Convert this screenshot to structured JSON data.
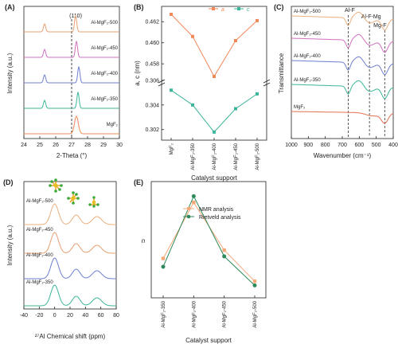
{
  "panels": {
    "A": {
      "letter": "(A)"
    },
    "B": {
      "letter": "(B)"
    },
    "C": {
      "letter": "(C)"
    },
    "D": {
      "letter": "(D)"
    },
    "E": {
      "letter": "(E)"
    }
  },
  "chart_data": [
    {
      "id": "A",
      "type": "line",
      "xlabel": "2-Theta (°)",
      "ylabel": "Intensity (a.u.)",
      "xlim": [
        24,
        30
      ],
      "xticks": [
        "24",
        "25",
        "26",
        "27",
        "28",
        "29",
        "30"
      ],
      "annotation": "(110)",
      "series": [
        {
          "name": "Al-MgF₂-500",
          "color": "#e8a070",
          "peaks": [
            25.3,
            27.25
          ]
        },
        {
          "name": "Al-MgF₂-450",
          "color": "#d070c0",
          "peaks": [
            25.3,
            27.3
          ]
        },
        {
          "name": "Al-MgF₂-400",
          "color": "#6f7fd0",
          "peaks": [
            25.3,
            27.45
          ]
        },
        {
          "name": "Al-MgF₂-350",
          "color": "#3cb59a",
          "peaks": [
            25.3,
            27.4
          ]
        },
        {
          "name": "MgF₂",
          "color": "#f28a55",
          "peaks": [
            27.3
          ]
        }
      ]
    },
    {
      "id": "B",
      "type": "line",
      "xlabel": "Catalyst support",
      "ylabel": "a, c (nm)",
      "categories": [
        "MgF₂",
        "Al-MgF₂-350",
        "Al-MgF₂-400",
        "Al-MgF₂-450",
        "Al-MgF₂-500"
      ],
      "upper": {
        "ylim": [
          0.4565,
          0.463
        ],
        "yticks": [
          "0.458",
          "0.460",
          "0.462"
        ],
        "tickvals": [
          0.458,
          0.46,
          0.462
        ]
      },
      "lower": {
        "ylim": [
          0.3014,
          0.3058
        ],
        "yticks": [
          "0.302",
          "0.304",
          "0.306"
        ],
        "tickvals": [
          0.302,
          0.304,
          0.306
        ]
      },
      "series": [
        {
          "name": "a",
          "color": "#f0885a",
          "values": [
            0.4627,
            0.4606,
            0.4568,
            0.4602,
            0.4621
          ]
        },
        {
          "name": "c",
          "color": "#3cb59a",
          "values": [
            0.3052,
            0.304,
            0.3018,
            0.3037,
            0.3049
          ]
        }
      ]
    },
    {
      "id": "C",
      "type": "line",
      "xlabel": "Wavenumber (cm⁻¹)",
      "ylabel": "Transmittance",
      "xlim": [
        1000,
        400
      ],
      "xticks": [
        "1000",
        "900",
        "800",
        "700",
        "600",
        "500",
        "400"
      ],
      "annotations": [
        "Al-F",
        "Al-F-Mg",
        "Mg-F"
      ],
      "annotation_x": [
        665,
        540,
        450
      ],
      "series": [
        {
          "name": "Al-MgF₂-500",
          "color": "#e8b080"
        },
        {
          "name": "Al-MgF₂-450",
          "color": "#d070c0"
        },
        {
          "name": "Al-MgF₂-400",
          "color": "#6f7fd0"
        },
        {
          "name": "Al-MgF₂-350",
          "color": "#3cb59a"
        },
        {
          "name": "MgF₂",
          "color": "#e07050"
        }
      ]
    },
    {
      "id": "D",
      "type": "line",
      "xlabel": "²⁷Al Chemical shift (ppm)",
      "ylabel": "Intensity (a.u.)",
      "xlim": [
        -40,
        80
      ],
      "xticks": [
        "-40",
        "-20",
        "0",
        "20",
        "40",
        "60",
        "80"
      ],
      "peaks_ppm": [
        0,
        28,
        55
      ],
      "series": [
        {
          "name": "Al-MgF₂-500",
          "color": "#e8b080"
        },
        {
          "name": "Al-MgF₂-450",
          "color": "#e8a070"
        },
        {
          "name": "Al-MgF₂-400",
          "color": "#6f7fd0"
        },
        {
          "name": "Al-MgF₂-350",
          "color": "#3cb59a"
        }
      ]
    },
    {
      "id": "E",
      "type": "line",
      "xlabel": "Catalyst support",
      "ylabel": "n",
      "categories": [
        "Al-MgF₂-350",
        "Al-MgF₂-400",
        "Al-MgF₂-450",
        "Al-MgF₂-500"
      ],
      "series": [
        {
          "name": "NMR analysis",
          "color": "#f5a878",
          "values": [
            0.24,
            0.51,
            0.28,
            0.13
          ]
        },
        {
          "name": "Rietveld analysis",
          "color": "#2e8a5a",
          "values": [
            0.2,
            0.54,
            0.25,
            0.11
          ]
        }
      ]
    }
  ]
}
